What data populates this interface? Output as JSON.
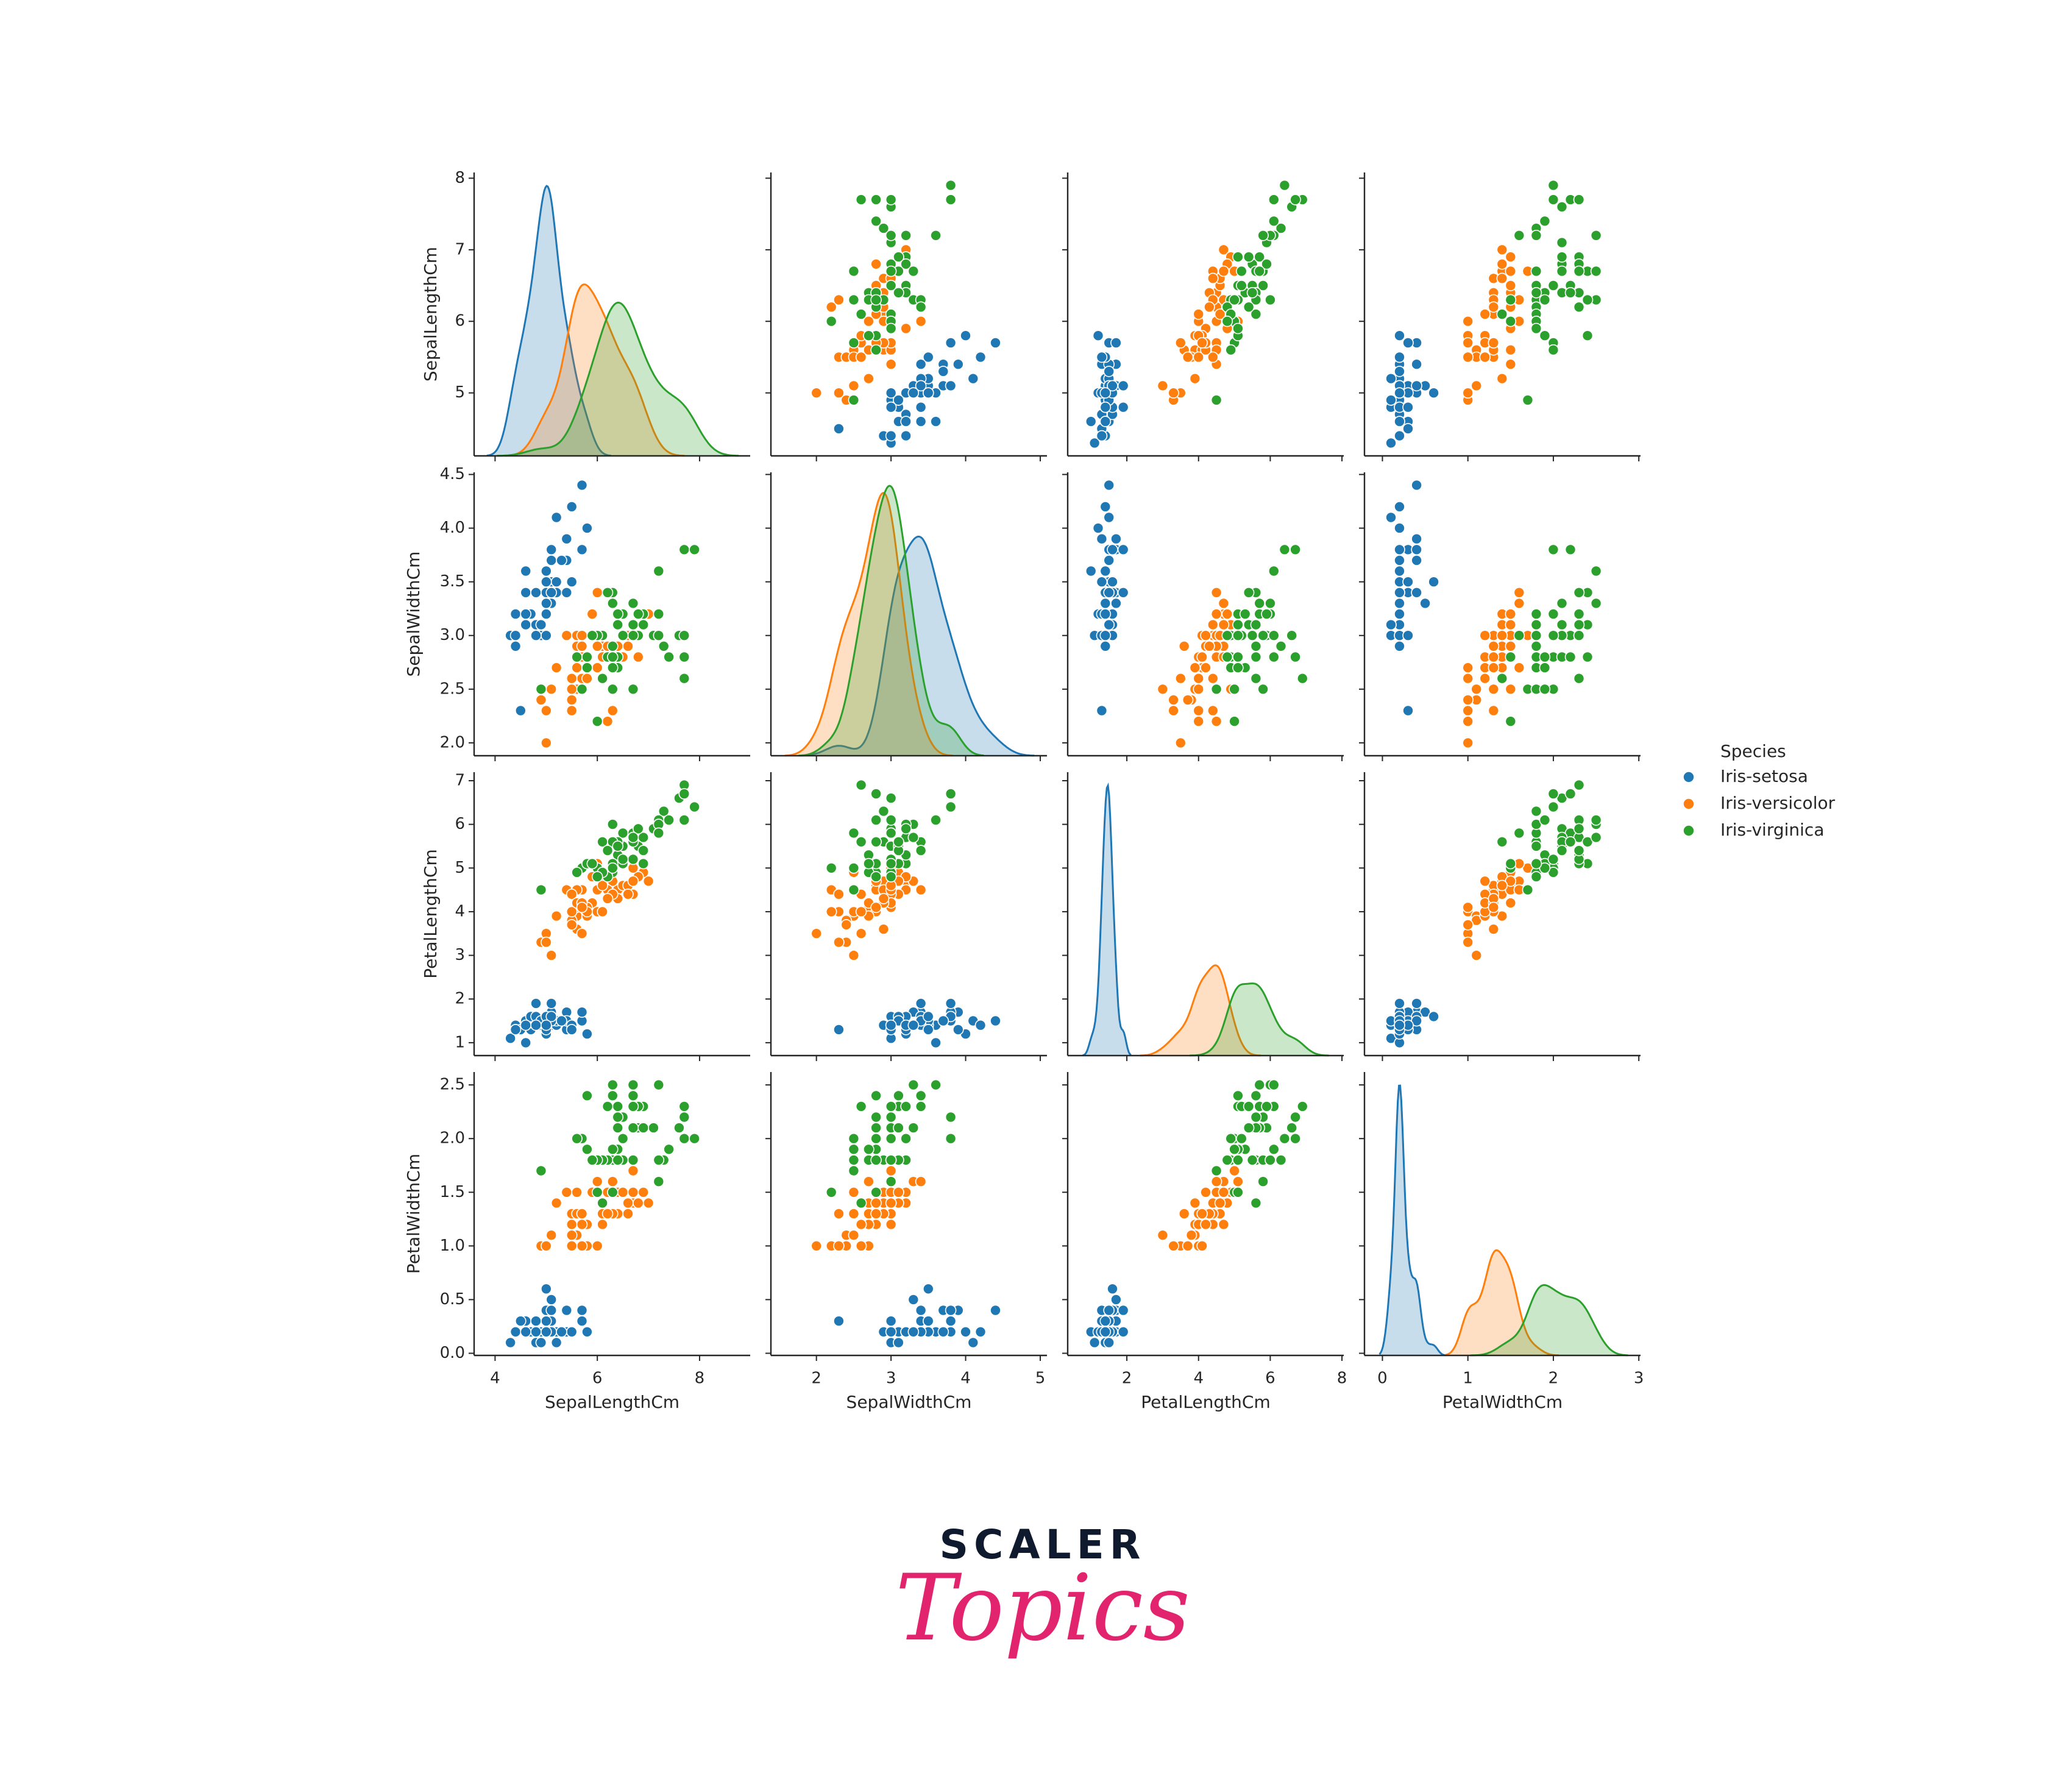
{
  "chart_data": {
    "type": "scatter",
    "kind": "pairplot",
    "diagonal": "kde",
    "title": "",
    "variables": [
      "SepalLengthCm",
      "SepalWidthCm",
      "PetalLengthCm",
      "PetalWidthCm"
    ],
    "axes": [
      {
        "label": "SepalLengthCm",
        "lim": [
          3.59,
          8.99
        ],
        "ylim": [
          4.12,
          8.08
        ],
        "ticks": [
          4,
          6,
          8
        ],
        "tick_labels": [
          "4",
          "6",
          "8"
        ],
        "yticks": [
          5,
          6,
          7,
          8
        ],
        "ytick_labels": [
          "5",
          "6",
          "7",
          "8"
        ]
      },
      {
        "label": "SepalWidthCm",
        "lim": [
          1.39,
          5.09
        ],
        "ylim": [
          1.88,
          4.52
        ],
        "ticks": [
          2,
          3,
          4,
          5
        ],
        "tick_labels": [
          "2",
          "3",
          "4",
          "5"
        ],
        "yticks": [
          2.0,
          2.5,
          3.0,
          3.5,
          4.0,
          4.5
        ],
        "ytick_labels": [
          "2.0",
          "2.5",
          "3.0",
          "3.5",
          "4.0",
          "4.5"
        ]
      },
      {
        "label": "PetalLengthCm",
        "lim": [
          0.35,
          8.05
        ],
        "ylim": [
          0.705,
          7.195
        ],
        "ticks": [
          2,
          4,
          6,
          8
        ],
        "tick_labels": [
          "2",
          "4",
          "6",
          "8"
        ],
        "yticks": [
          1,
          2,
          3,
          4,
          5,
          6,
          7
        ],
        "ytick_labels": [
          "1",
          "2",
          "3",
          "4",
          "5",
          "6",
          "7"
        ]
      },
      {
        "label": "PetalWidthCm",
        "lim": [
          -0.21,
          3.02
        ],
        "ylim": [
          -0.02,
          2.62
        ],
        "ticks": [
          0,
          1,
          2,
          3
        ],
        "tick_labels": [
          "0",
          "1",
          "2",
          "3"
        ],
        "yticks": [
          0.0,
          0.5,
          1.0,
          1.5,
          2.0,
          2.5
        ],
        "ytick_labels": [
          "0.0",
          "0.5",
          "1.0",
          "1.5",
          "2.0",
          "2.5"
        ]
      }
    ],
    "legend": {
      "title": "Species",
      "position": "right"
    },
    "series": [
      {
        "name": "Iris-setosa",
        "color": "#1f77b4",
        "SepalLengthCm": [
          5.1,
          4.9,
          4.7,
          4.6,
          5.0,
          5.4,
          4.6,
          5.0,
          4.4,
          4.9,
          5.4,
          4.8,
          4.8,
          4.3,
          5.8,
          5.7,
          5.4,
          5.1,
          5.7,
          5.1,
          5.4,
          5.1,
          4.6,
          5.1,
          4.8,
          5.0,
          5.0,
          5.2,
          5.2,
          4.7,
          4.8,
          5.4,
          5.2,
          5.5,
          4.9,
          5.0,
          5.5,
          4.9,
          4.4,
          5.1,
          5.0,
          4.5,
          4.4,
          5.0,
          5.1,
          4.8,
          5.1,
          4.6,
          5.3,
          5.0
        ],
        "SepalWidthCm": [
          3.5,
          3.0,
          3.2,
          3.1,
          3.6,
          3.9,
          3.4,
          3.4,
          2.9,
          3.1,
          3.7,
          3.4,
          3.0,
          3.0,
          4.0,
          4.4,
          3.9,
          3.5,
          3.8,
          3.8,
          3.4,
          3.7,
          3.6,
          3.3,
          3.4,
          3.0,
          3.4,
          3.5,
          3.4,
          3.2,
          3.1,
          3.4,
          4.1,
          4.2,
          3.1,
          3.2,
          3.5,
          3.1,
          3.0,
          3.4,
          3.5,
          2.3,
          3.2,
          3.5,
          3.8,
          3.0,
          3.8,
          3.2,
          3.7,
          3.3
        ],
        "PetalLengthCm": [
          1.4,
          1.4,
          1.3,
          1.5,
          1.4,
          1.7,
          1.4,
          1.5,
          1.4,
          1.5,
          1.5,
          1.6,
          1.4,
          1.1,
          1.2,
          1.5,
          1.3,
          1.4,
          1.7,
          1.5,
          1.7,
          1.5,
          1.0,
          1.7,
          1.9,
          1.6,
          1.6,
          1.5,
          1.4,
          1.6,
          1.6,
          1.5,
          1.5,
          1.4,
          1.5,
          1.2,
          1.3,
          1.5,
          1.3,
          1.5,
          1.3,
          1.3,
          1.3,
          1.6,
          1.9,
          1.4,
          1.6,
          1.4,
          1.5,
          1.4
        ],
        "PetalWidthCm": [
          0.2,
          0.2,
          0.2,
          0.2,
          0.2,
          0.4,
          0.3,
          0.2,
          0.2,
          0.1,
          0.2,
          0.2,
          0.1,
          0.1,
          0.2,
          0.4,
          0.4,
          0.3,
          0.3,
          0.3,
          0.2,
          0.4,
          0.2,
          0.5,
          0.2,
          0.2,
          0.4,
          0.2,
          0.2,
          0.2,
          0.2,
          0.4,
          0.1,
          0.2,
          0.1,
          0.2,
          0.2,
          0.1,
          0.2,
          0.2,
          0.3,
          0.3,
          0.2,
          0.6,
          0.4,
          0.3,
          0.2,
          0.2,
          0.2,
          0.2
        ]
      },
      {
        "name": "Iris-versicolor",
        "color": "#ff7f0e",
        "SepalLengthCm": [
          7.0,
          6.4,
          6.9,
          5.5,
          6.5,
          5.7,
          6.3,
          4.9,
          6.6,
          5.2,
          5.0,
          5.9,
          6.0,
          6.1,
          5.6,
          6.7,
          5.6,
          5.8,
          6.2,
          5.6,
          5.9,
          6.1,
          6.3,
          6.1,
          6.4,
          6.6,
          6.8,
          6.7,
          6.0,
          5.7,
          5.5,
          5.5,
          5.8,
          6.0,
          5.4,
          6.0,
          6.7,
          6.3,
          5.6,
          5.5,
          5.5,
          6.1,
          5.8,
          5.0,
          5.6,
          5.7,
          5.7,
          6.2,
          5.1,
          5.7
        ],
        "SepalWidthCm": [
          3.2,
          3.2,
          3.1,
          2.3,
          2.8,
          2.8,
          3.3,
          2.4,
          2.9,
          2.7,
          2.0,
          3.0,
          2.2,
          2.9,
          2.9,
          3.1,
          3.0,
          2.7,
          2.2,
          2.5,
          3.2,
          2.8,
          2.5,
          2.8,
          2.9,
          3.0,
          2.8,
          3.0,
          2.9,
          2.6,
          2.4,
          2.4,
          2.7,
          2.7,
          3.0,
          3.4,
          3.1,
          2.3,
          3.0,
          2.5,
          2.6,
          3.0,
          2.6,
          2.3,
          2.7,
          3.0,
          2.9,
          2.9,
          2.5,
          2.8
        ],
        "PetalLengthCm": [
          4.7,
          4.5,
          4.9,
          4.0,
          4.6,
          4.5,
          4.7,
          3.3,
          4.6,
          3.9,
          3.5,
          4.2,
          4.0,
          4.7,
          3.6,
          4.4,
          4.5,
          4.1,
          4.5,
          3.9,
          4.8,
          4.0,
          4.9,
          4.7,
          4.3,
          4.4,
          4.8,
          5.0,
          4.5,
          3.5,
          3.8,
          3.7,
          3.9,
          5.1,
          4.5,
          4.5,
          4.7,
          4.4,
          4.1,
          4.0,
          4.4,
          4.6,
          4.0,
          3.3,
          4.2,
          4.2,
          4.2,
          4.3,
          3.0,
          4.1
        ],
        "PetalWidthCm": [
          1.4,
          1.5,
          1.5,
          1.3,
          1.5,
          1.3,
          1.6,
          1.0,
          1.3,
          1.4,
          1.0,
          1.5,
          1.0,
          1.4,
          1.3,
          1.4,
          1.5,
          1.0,
          1.5,
          1.1,
          1.8,
          1.3,
          1.5,
          1.2,
          1.3,
          1.4,
          1.4,
          1.7,
          1.5,
          1.0,
          1.1,
          1.0,
          1.2,
          1.6,
          1.5,
          1.6,
          1.5,
          1.3,
          1.3,
          1.3,
          1.2,
          1.4,
          1.2,
          1.0,
          1.3,
          1.2,
          1.3,
          1.3,
          1.1,
          1.3
        ]
      },
      {
        "name": "Iris-virginica",
        "color": "#2ca02c",
        "SepalLengthCm": [
          6.3,
          5.8,
          7.1,
          6.3,
          6.5,
          7.6,
          4.9,
          7.3,
          6.7,
          7.2,
          6.5,
          6.4,
          6.8,
          5.7,
          5.8,
          6.4,
          6.5,
          7.7,
          7.7,
          6.0,
          6.9,
          5.6,
          7.7,
          6.3,
          6.7,
          7.2,
          6.2,
          6.1,
          6.4,
          7.2,
          7.4,
          7.9,
          6.4,
          6.3,
          6.1,
          7.7,
          6.3,
          6.4,
          6.0,
          6.9,
          6.7,
          6.9,
          5.8,
          6.8,
          6.7,
          6.7,
          6.3,
          6.5,
          6.2,
          5.9
        ],
        "SepalWidthCm": [
          3.3,
          2.7,
          3.0,
          2.9,
          3.0,
          3.0,
          2.5,
          2.9,
          2.5,
          3.6,
          3.2,
          2.7,
          3.0,
          2.5,
          2.8,
          3.2,
          3.0,
          3.8,
          2.6,
          2.2,
          3.2,
          2.8,
          2.8,
          2.7,
          3.3,
          3.2,
          2.8,
          3.0,
          2.8,
          3.0,
          2.8,
          3.8,
          2.8,
          2.8,
          2.6,
          3.0,
          3.4,
          3.1,
          3.0,
          3.1,
          3.1,
          3.1,
          2.7,
          3.2,
          3.3,
          3.0,
          2.5,
          3.0,
          3.4,
          3.0
        ],
        "PetalLengthCm": [
          6.0,
          5.1,
          5.9,
          5.6,
          5.8,
          6.6,
          4.5,
          6.3,
          5.8,
          6.1,
          5.1,
          5.3,
          5.5,
          5.0,
          5.1,
          5.3,
          5.5,
          6.7,
          6.9,
          5.0,
          5.7,
          4.9,
          6.7,
          4.9,
          5.7,
          6.0,
          4.8,
          4.9,
          5.6,
          5.8,
          6.1,
          6.4,
          5.6,
          5.1,
          5.6,
          6.1,
          5.6,
          5.5,
          4.8,
          5.4,
          5.6,
          5.1,
          5.1,
          5.9,
          5.7,
          5.2,
          5.0,
          5.2,
          5.4,
          5.1
        ],
        "PetalWidthCm": [
          2.5,
          1.9,
          2.1,
          1.8,
          2.2,
          2.1,
          1.7,
          1.8,
          1.8,
          2.5,
          2.0,
          1.9,
          2.1,
          2.0,
          2.4,
          2.3,
          1.8,
          2.2,
          2.3,
          1.5,
          2.3,
          2.0,
          2.0,
          1.8,
          2.1,
          1.8,
          1.8,
          1.8,
          2.1,
          1.6,
          1.9,
          2.0,
          2.2,
          1.5,
          1.4,
          2.3,
          2.4,
          1.8,
          1.8,
          2.1,
          2.4,
          2.3,
          1.9,
          2.3,
          2.5,
          2.3,
          1.9,
          2.0,
          2.3,
          1.8
        ]
      }
    ]
  },
  "logo": {
    "line1": "SCALER",
    "line2": "Topics"
  }
}
